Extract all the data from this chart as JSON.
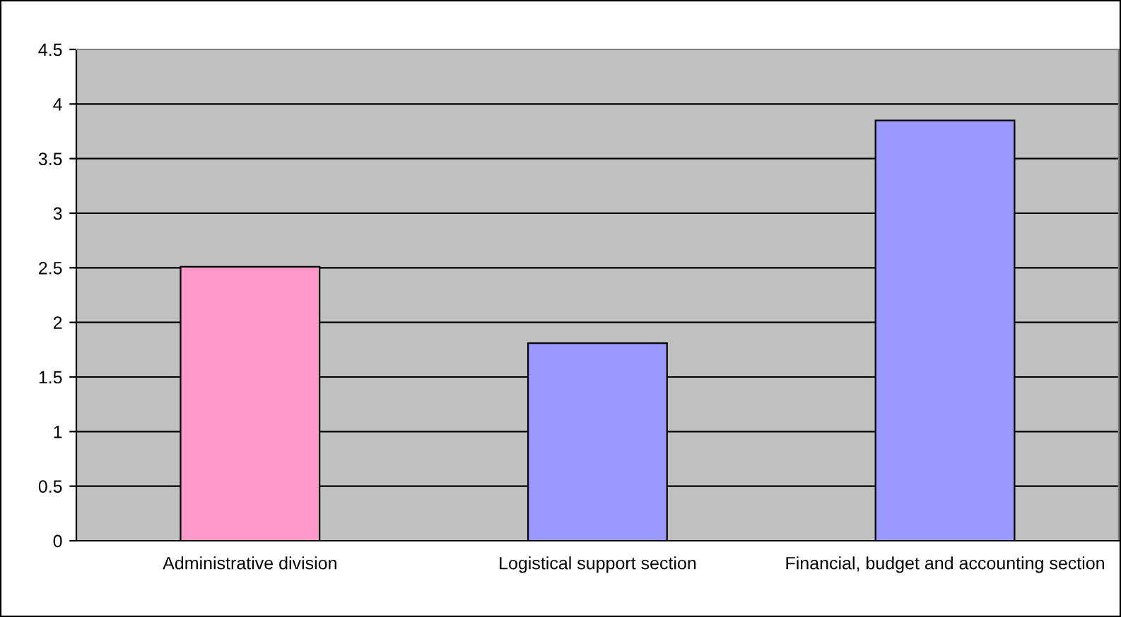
{
  "chart_data": {
    "type": "bar",
    "categories": [
      "Administrative division",
      "Logistical support section",
      "Financial, budget and accounting section"
    ],
    "values": [
      2.51,
      1.81,
      3.85
    ],
    "colors": [
      "#ff99cc",
      "#9999ff",
      "#9999ff"
    ],
    "ylim": [
      0,
      4.5
    ],
    "yticks": [
      0,
      0.5,
      1,
      1.5,
      2,
      2.5,
      3,
      3.5,
      4,
      4.5
    ],
    "grid": "y"
  }
}
